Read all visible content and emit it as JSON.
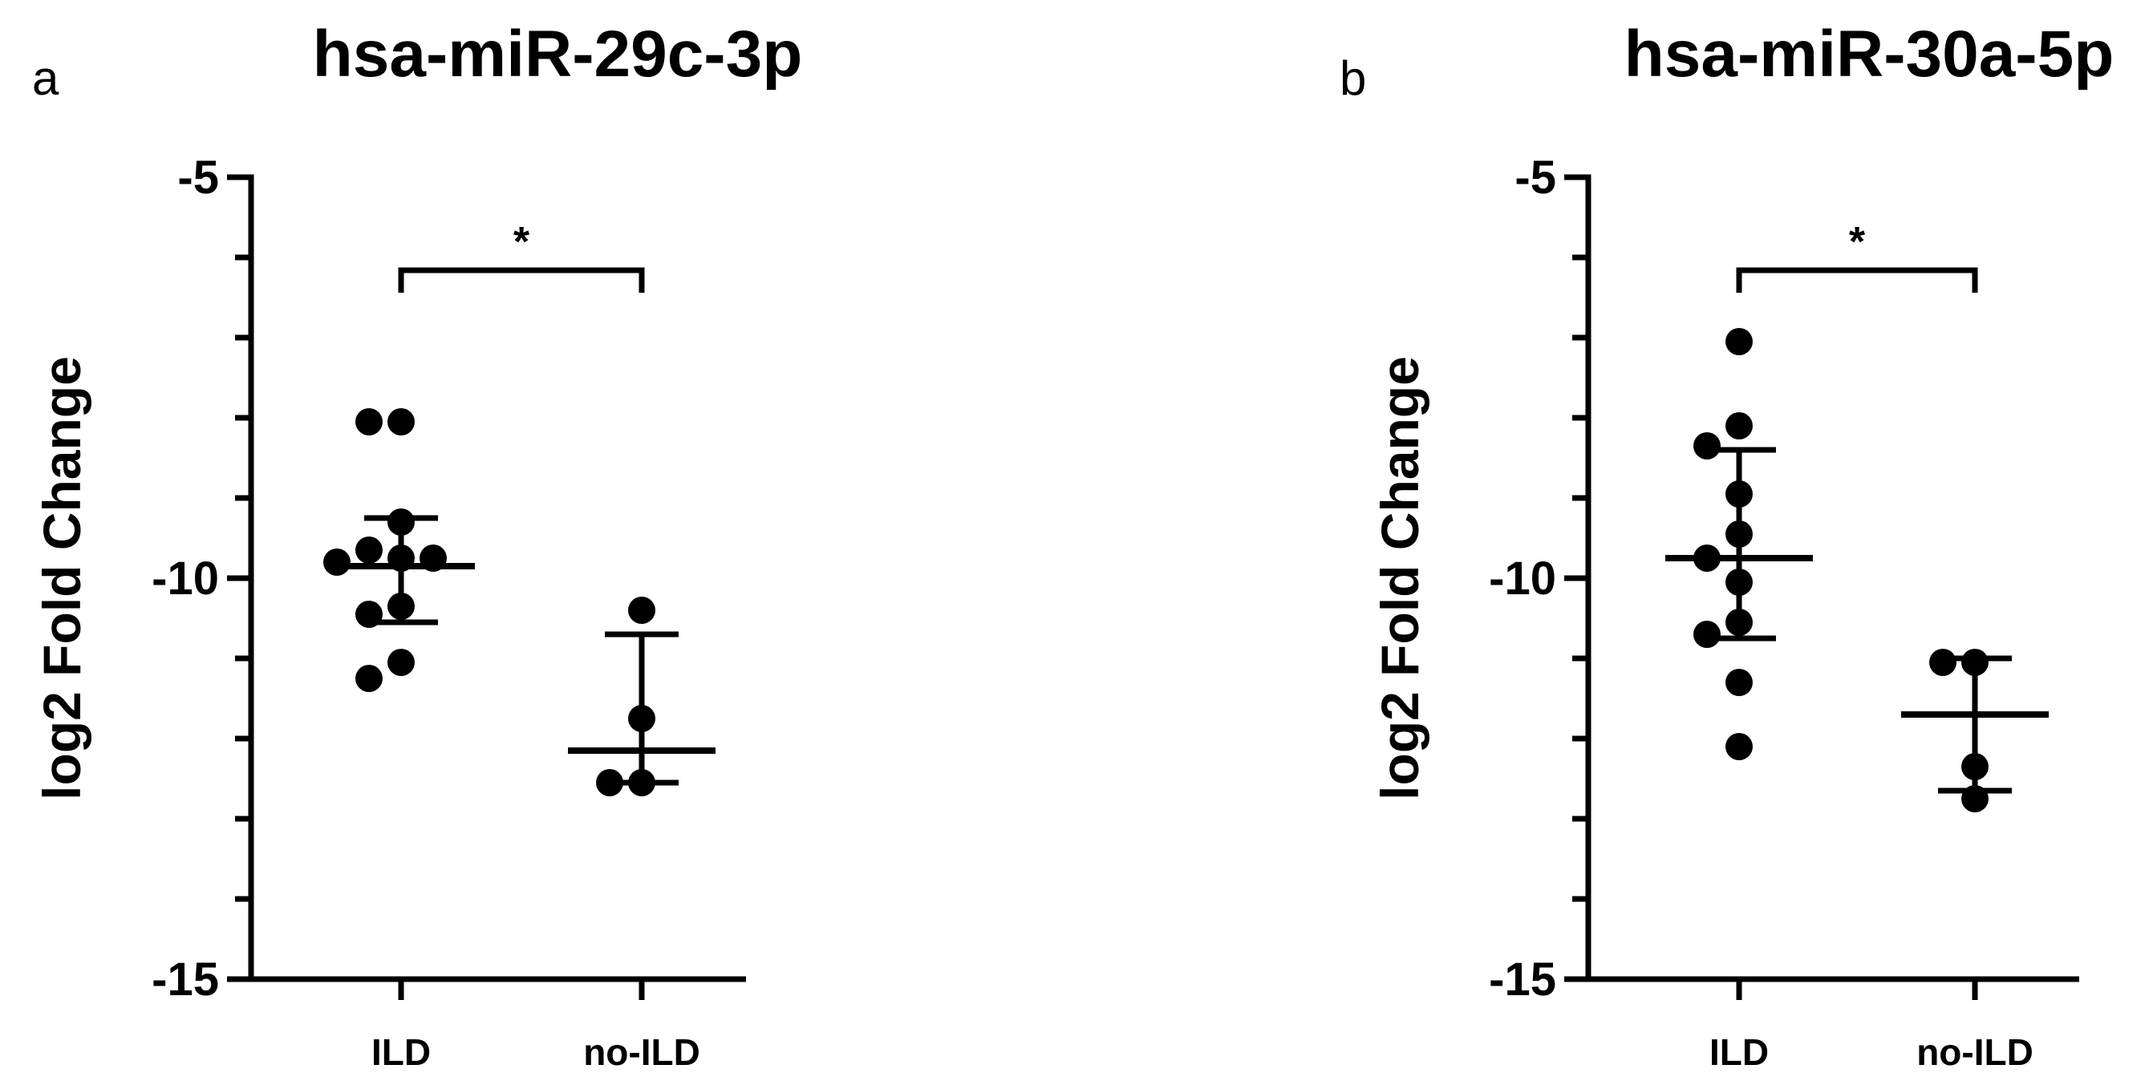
{
  "chart_data": [
    {
      "panel": "a",
      "type": "scatter",
      "title": "hsa-miR-29c-3p",
      "ylabel": "log2 Fold Change",
      "xlabel": "",
      "ylim": [
        -15,
        -5
      ],
      "yticks": [
        -5,
        -10,
        -15
      ],
      "categories": [
        "ILD",
        "no-ILD"
      ],
      "groups": [
        {
          "category": "ILD",
          "points": [
            -8.05,
            -8.05,
            -9.3,
            -9.65,
            -9.75,
            -9.75,
            -9.8,
            -10.35,
            -10.45,
            -11.05,
            -11.25
          ],
          "mean": -9.85,
          "error_upper": -9.25,
          "error_lower": -10.55
        },
        {
          "category": "no-ILD",
          "points": [
            -10.4,
            -11.75,
            -12.55,
            -12.55
          ],
          "mean": -12.15,
          "error_upper": -10.7,
          "error_lower": -12.55
        }
      ],
      "significance": {
        "from": "ILD",
        "to": "no-ILD",
        "label": "*"
      },
      "grid": false
    },
    {
      "panel": "b",
      "type": "scatter",
      "title": "hsa-miR-30a-5p",
      "ylabel": "log2 Fold Change",
      "xlabel": "",
      "ylim": [
        -15,
        -5
      ],
      "yticks": [
        -5,
        -10,
        -15
      ],
      "categories": [
        "ILD",
        "no-ILD"
      ],
      "groups": [
        {
          "category": "ILD",
          "points": [
            -7.05,
            -8.1,
            -8.35,
            -8.95,
            -9.45,
            -9.75,
            -10.05,
            -10.55,
            -10.7,
            -11.3,
            -12.1
          ],
          "mean": -9.75,
          "error_upper": -8.4,
          "error_lower": -10.75
        },
        {
          "category": "no-ILD",
          "points": [
            -11.05,
            -11.05,
            -12.35,
            -12.75
          ],
          "mean": -11.7,
          "error_upper": -11.0,
          "error_lower": -12.65
        }
      ],
      "significance": {
        "from": "ILD",
        "to": "no-ILD",
        "label": "*"
      },
      "grid": false
    }
  ]
}
